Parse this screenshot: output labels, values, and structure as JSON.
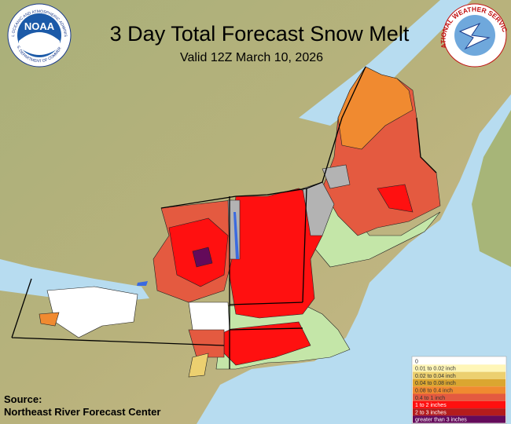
{
  "header": {
    "title": "3 Day Total Forecast Snow Melt",
    "subtitle": "Valid 12Z March 10, 2026"
  },
  "logos": {
    "noaa": {
      "name": "NOAA",
      "ring_top": "NATIONAL OCEANIC AND ATMOSPHERIC ADMINISTRATION",
      "ring_bottom": "U.S. DEPARTMENT OF COMMERCE"
    },
    "nws": {
      "ring": "NATIONAL WEATHER SERVICE"
    }
  },
  "legend": {
    "items": [
      {
        "label": "0",
        "color": "#ffffff"
      },
      {
        "label": "0.01 to 0.02 inch",
        "color": "#fff6b8"
      },
      {
        "label": "0.02 to 0.04 inch",
        "color": "#ecd070"
      },
      {
        "label": "0.04 to 0.08 inch",
        "color": "#dba630"
      },
      {
        "label": "0.08 to 0.4 inch",
        "color": "#f08a30"
      },
      {
        "label": "0.4 to 1 inch",
        "color": "#e45a40"
      },
      {
        "label": "1 to 2 inches",
        "color": "#ff1010"
      },
      {
        "label": "2 to 3 inches",
        "color": "#b41c1c"
      },
      {
        "label": "greater than 3 inches",
        "color": "#640a5a"
      }
    ]
  },
  "source": {
    "label": "Source:",
    "name": "Northeast River Forecast Center"
  }
}
